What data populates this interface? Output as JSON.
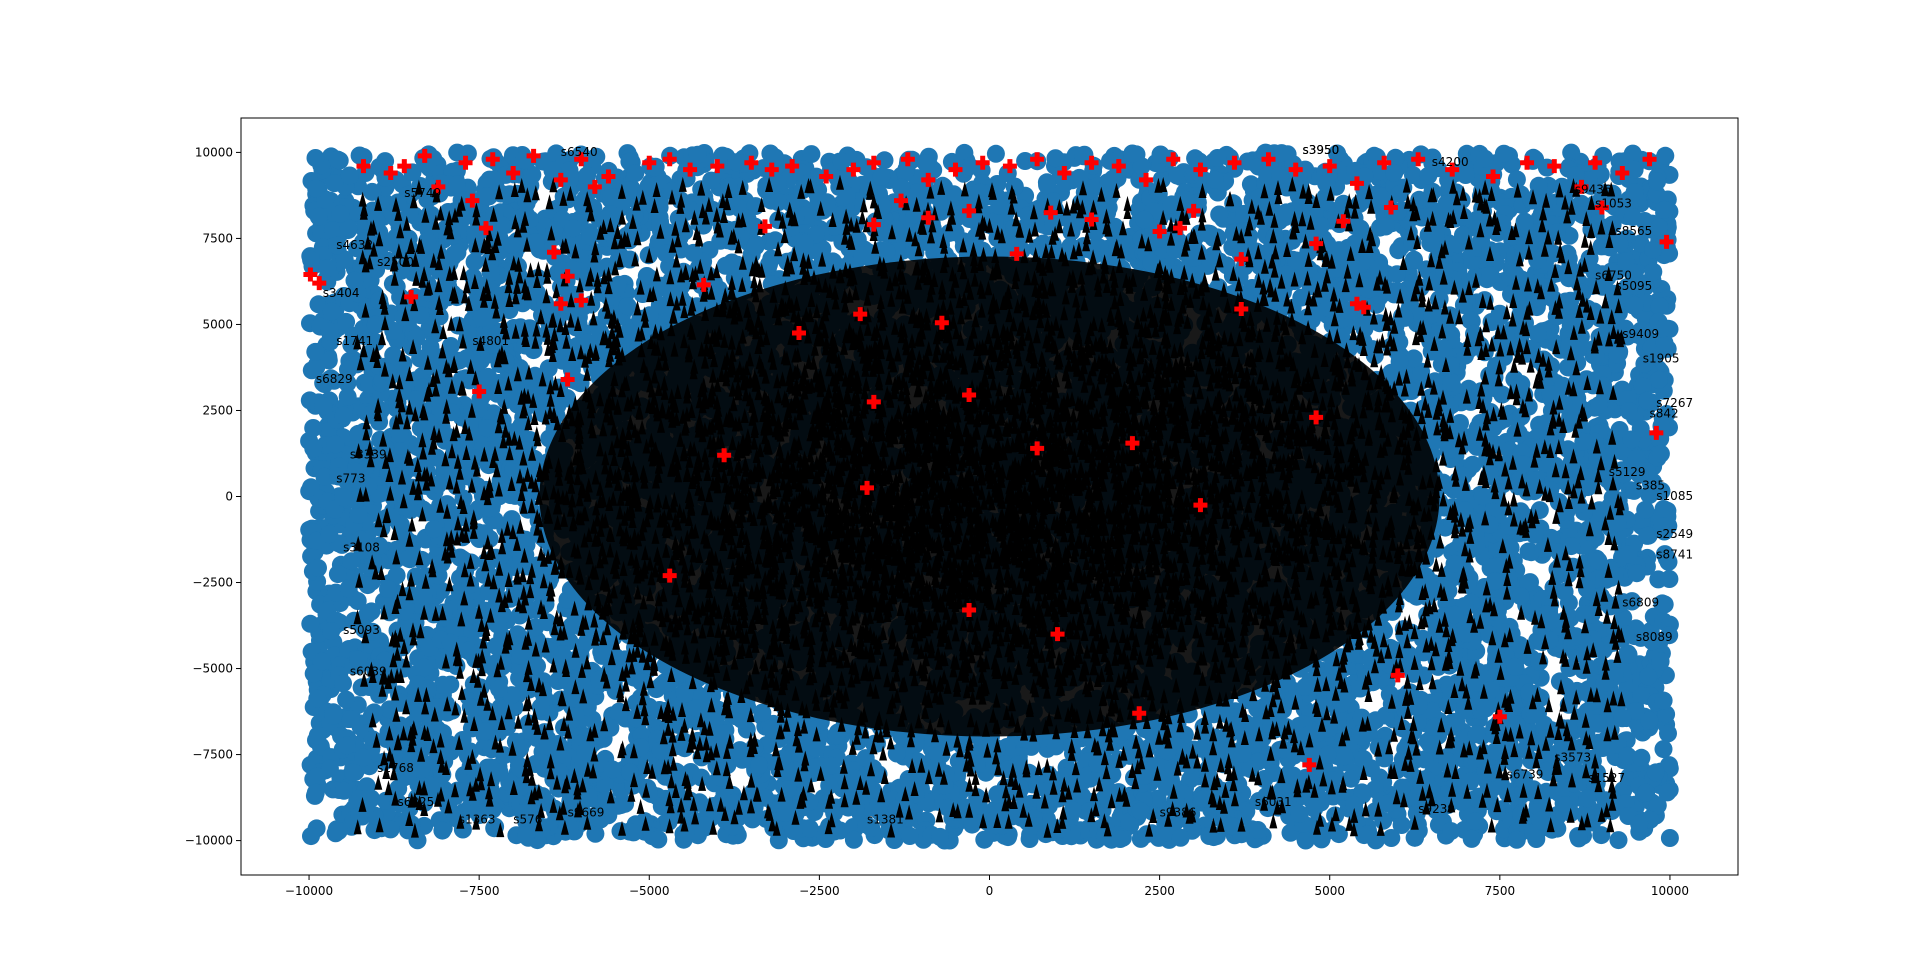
{
  "chart_data": {
    "type": "scatter",
    "title": "",
    "xlabel": "",
    "ylabel": "",
    "xlim": [
      -11000,
      11000
    ],
    "ylim": [
      -11000,
      11000
    ],
    "xticks": [
      -10000,
      -7500,
      -5000,
      -2500,
      0,
      2500,
      5000,
      7500,
      10000
    ],
    "yticks": [
      -10000,
      -7500,
      -5000,
      -2500,
      0,
      2500,
      5000,
      7500,
      10000
    ],
    "xtick_labels": [
      "−10000",
      "−7500",
      "−5000",
      "−2500",
      "0",
      "2500",
      "5000",
      "7500",
      "10000"
    ],
    "ytick_labels": [
      "−10000",
      "−7500",
      "−5000",
      "−2500",
      "0",
      "2500",
      "5000",
      "7500",
      "10000"
    ],
    "grid": false,
    "legend": "none",
    "colors": {
      "blue": "#1f77b4",
      "red": "#ff0000",
      "black": "#000000"
    },
    "series": [
      {
        "marker": "blue-circles",
        "note_region": [
          -10000,
          10000,
          -10000,
          10000
        ],
        "count_estimate": 10000
      },
      {
        "marker": "red-plus",
        "points": [
          [
            -9980,
            6450
          ],
          [
            -9850,
            6200
          ],
          [
            -9200,
            9600
          ],
          [
            -8800,
            9400
          ],
          [
            -8600,
            9600
          ],
          [
            -8300,
            9900
          ],
          [
            -8100,
            9000
          ],
          [
            -7700,
            9700
          ],
          [
            -7600,
            8600
          ],
          [
            -7400,
            7800
          ],
          [
            -7300,
            9800
          ],
          [
            -7000,
            9400
          ],
          [
            -6700,
            9900
          ],
          [
            -6300,
            9200
          ],
          [
            -6000,
            9800
          ],
          [
            -5800,
            9000
          ],
          [
            -5600,
            9300
          ],
          [
            -5000,
            9700
          ],
          [
            -4700,
            9800
          ],
          [
            -4400,
            9500
          ],
          [
            -4000,
            9600
          ],
          [
            -3500,
            9700
          ],
          [
            -3200,
            9500
          ],
          [
            -2900,
            9600
          ],
          [
            -2400,
            9300
          ],
          [
            -2000,
            9500
          ],
          [
            -1700,
            9700
          ],
          [
            -1200,
            9800
          ],
          [
            -900,
            9200
          ],
          [
            -500,
            9500
          ],
          [
            -100,
            9700
          ],
          [
            300,
            9600
          ],
          [
            700,
            9800
          ],
          [
            1100,
            9400
          ],
          [
            1500,
            9700
          ],
          [
            1900,
            9600
          ],
          [
            2300,
            9200
          ],
          [
            2700,
            9800
          ],
          [
            3100,
            9500
          ],
          [
            3600,
            9700
          ],
          [
            4100,
            9800
          ],
          [
            4500,
            9500
          ],
          [
            5000,
            9600
          ],
          [
            5400,
            9100
          ],
          [
            5800,
            9700
          ],
          [
            6300,
            9800
          ],
          [
            6800,
            9500
          ],
          [
            7400,
            9300
          ],
          [
            7900,
            9700
          ],
          [
            8300,
            9600
          ],
          [
            8900,
            9700
          ],
          [
            9300,
            9400
          ],
          [
            9700,
            9800
          ],
          [
            9950,
            7400
          ],
          [
            -7500,
            3050
          ],
          [
            -6200,
            3400
          ],
          [
            -6300,
            5600
          ],
          [
            -6000,
            5700
          ],
          [
            -6400,
            7100
          ],
          [
            -6200,
            6400
          ],
          [
            -8500,
            5800
          ],
          [
            -4200,
            6150
          ],
          [
            -3300,
            7850
          ],
          [
            -2800,
            4750
          ],
          [
            -1900,
            5300
          ],
          [
            -1700,
            7900
          ],
          [
            -1300,
            8600
          ],
          [
            -900,
            8100
          ],
          [
            -700,
            5050
          ],
          [
            -300,
            8300
          ],
          [
            400,
            7050
          ],
          [
            900,
            8250
          ],
          [
            1500,
            8050
          ],
          [
            2500,
            7700
          ],
          [
            2800,
            7800
          ],
          [
            3000,
            8300
          ],
          [
            3700,
            6900
          ],
          [
            3700,
            5450
          ],
          [
            4800,
            7350
          ],
          [
            5200,
            8000
          ],
          [
            5400,
            5600
          ],
          [
            5500,
            5500
          ],
          [
            5900,
            8400
          ],
          [
            -3900,
            1200
          ],
          [
            -1700,
            2750
          ],
          [
            -1800,
            250
          ],
          [
            -300,
            2950
          ],
          [
            700,
            1400
          ],
          [
            2100,
            1550
          ],
          [
            3100,
            -250
          ],
          [
            4800,
            2300
          ],
          [
            -4700,
            -2300
          ],
          [
            -300,
            -3300
          ],
          [
            1000,
            -4000
          ],
          [
            6000,
            -5200
          ],
          [
            2200,
            -6300
          ],
          [
            7500,
            -6400
          ],
          [
            4700,
            -7800
          ],
          [
            9800,
            1850
          ],
          [
            8700,
            9000
          ],
          [
            9000,
            8400
          ]
        ]
      },
      {
        "marker": "black-triangles",
        "count_estimate": 10000
      }
    ],
    "labels": [
      {
        "text": "s6540",
        "x": -6300,
        "y": 9900
      },
      {
        "text": "s3950",
        "x": 4600,
        "y": 9950
      },
      {
        "text": "s4200",
        "x": 6500,
        "y": 9600
      },
      {
        "text": "s5749",
        "x": -8600,
        "y": 8700
      },
      {
        "text": "s4632",
        "x": -9600,
        "y": 7200
      },
      {
        "text": "s3404",
        "x": -9800,
        "y": 5800
      },
      {
        "text": "s6829",
        "x": -9900,
        "y": 3300
      },
      {
        "text": "s1741",
        "x": -9600,
        "y": 4400
      },
      {
        "text": "s2500",
        "x": -9000,
        "y": 6700
      },
      {
        "text": "s4801",
        "x": -7600,
        "y": 4400
      },
      {
        "text": "s3950",
        "x": 4600,
        "y": 9950
      },
      {
        "text": "s8565",
        "x": 9200,
        "y": 7600
      },
      {
        "text": "s9436",
        "x": 8600,
        "y": 8800
      },
      {
        "text": "s1053",
        "x": 8900,
        "y": 8400
      },
      {
        "text": "s6750",
        "x": 8900,
        "y": 6300
      },
      {
        "text": "s5095",
        "x": 9200,
        "y": 6000
      },
      {
        "text": "s9409",
        "x": 9300,
        "y": 4600
      },
      {
        "text": "s1905",
        "x": 9600,
        "y": 3900
      },
      {
        "text": "s7267",
        "x": 9800,
        "y": 2600
      },
      {
        "text": "s842",
        "x": 9700,
        "y": 2300
      },
      {
        "text": "s5129",
        "x": 9100,
        "y": 600
      },
      {
        "text": "s385",
        "x": 9500,
        "y": 200
      },
      {
        "text": "s1085",
        "x": 9800,
        "y": -100
      },
      {
        "text": "s2549",
        "x": 9800,
        "y": -1200
      },
      {
        "text": "s8741",
        "x": 9800,
        "y": -1800
      },
      {
        "text": "s6809",
        "x": 9300,
        "y": -3200
      },
      {
        "text": "s8089",
        "x": 9500,
        "y": -4200
      },
      {
        "text": "s3573",
        "x": 8300,
        "y": -7700
      },
      {
        "text": "s1527",
        "x": 8800,
        "y": -8300
      },
      {
        "text": "s6739",
        "x": 7600,
        "y": -8200
      },
      {
        "text": "s3339",
        "x": -9400,
        "y": 1100
      },
      {
        "text": "s773",
        "x": -9600,
        "y": 400
      },
      {
        "text": "s3108",
        "x": -9500,
        "y": -1600
      },
      {
        "text": "s5093",
        "x": -9500,
        "y": -4000
      },
      {
        "text": "s6039",
        "x": -9400,
        "y": -5200
      },
      {
        "text": "s1768",
        "x": -9000,
        "y": -8000
      },
      {
        "text": "s6325",
        "x": -8700,
        "y": -9000
      },
      {
        "text": "s1363",
        "x": -7800,
        "y": -9500
      },
      {
        "text": "s576",
        "x": -7000,
        "y": -9500
      },
      {
        "text": "s9386",
        "x": 2500,
        "y": -9300
      },
      {
        "text": "s9239",
        "x": 6300,
        "y": -9200
      },
      {
        "text": "s6031",
        "x": 3900,
        "y": -9000
      },
      {
        "text": "s9669",
        "x": -6200,
        "y": -9300
      },
      {
        "text": "s1381",
        "x": -1800,
        "y": -9500
      }
    ]
  }
}
